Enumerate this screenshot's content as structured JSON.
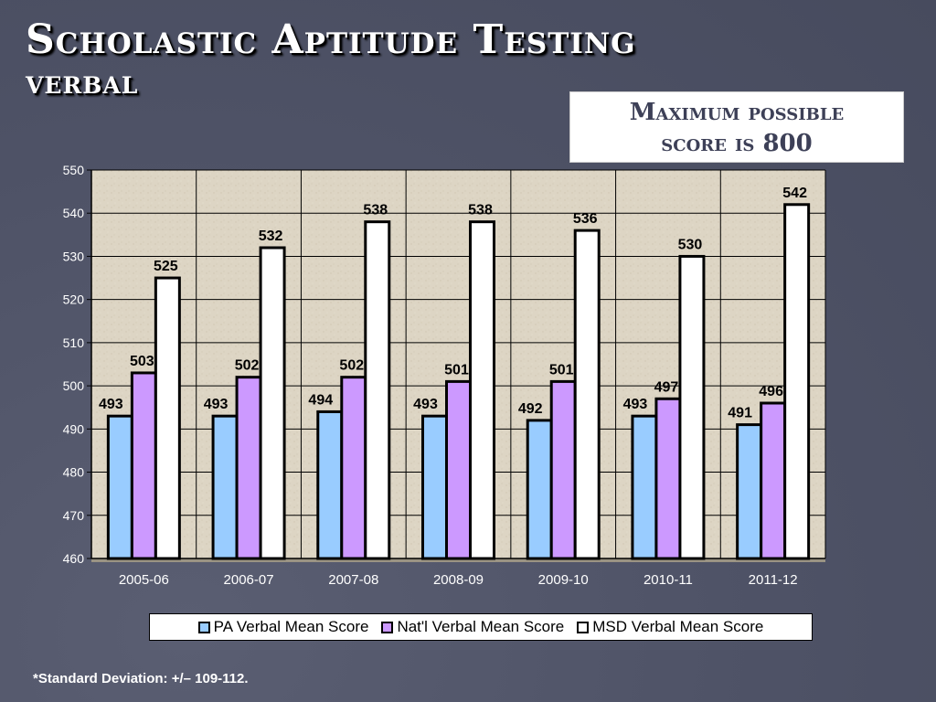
{
  "slide": {
    "title": "Scholastic Aptitude Testing",
    "subtitle": "verbal",
    "note_line1": "Maximum possible",
    "note_line2": "score is 800",
    "footnote": "*Standard Deviation: +/– 109-112."
  },
  "chart_data": {
    "type": "bar",
    "title": "",
    "xlabel": "",
    "ylabel": "",
    "categories": [
      "2005-06",
      "2006-07",
      "2007-08",
      "2008-09",
      "2009-10",
      "2010-11",
      "2011-12"
    ],
    "ylim": [
      460,
      550
    ],
    "yticks": [
      460,
      470,
      480,
      490,
      500,
      510,
      520,
      530,
      540,
      550
    ],
    "grid": true,
    "legend_position": "bottom",
    "series": [
      {
        "name": "PA Verbal Mean Score",
        "color": "#99ccff",
        "values": [
          493,
          493,
          494,
          493,
          492,
          493,
          491
        ]
      },
      {
        "name": "Nat'l Verbal Mean Score",
        "color": "#cc99ff",
        "values": [
          503,
          502,
          502,
          501,
          501,
          497,
          496
        ]
      },
      {
        "name": "MSD Verbal Mean Score",
        "color": "#ffffff",
        "values": [
          525,
          532,
          538,
          538,
          536,
          530,
          542
        ]
      }
    ]
  }
}
